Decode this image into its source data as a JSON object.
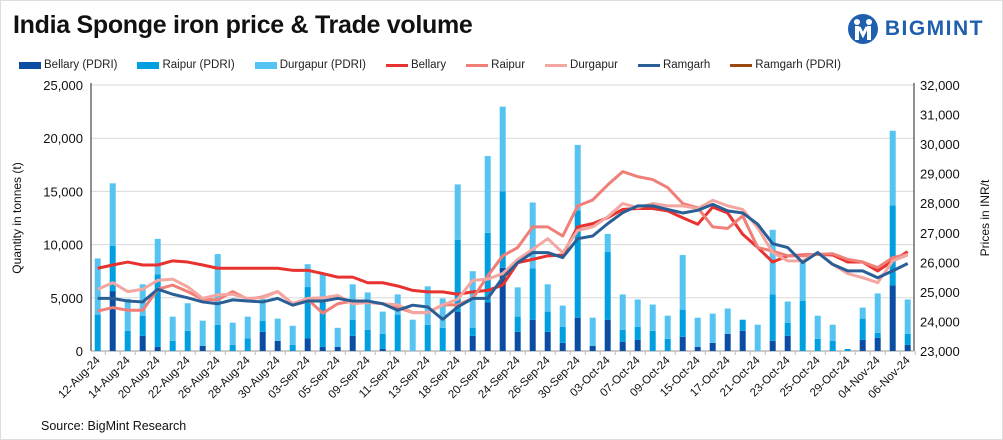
{
  "title": "India Sponge iron price & Trade volume",
  "logo": {
    "text": "BIGMINT",
    "color": "#1f5fae"
  },
  "source": "Source: BigMint Research",
  "chart_data": {
    "type": "bar+line",
    "title": "India Sponge iron price & Trade volume",
    "ylabel_left": "Quantity in tonnes (t)",
    "ylabel_right": "Prices in INR/t",
    "ylim_left": [
      0,
      25000
    ],
    "ylim_right": [
      23000,
      32000
    ],
    "yticks_left": [
      "0",
      "5,000",
      "10,000",
      "15,000",
      "20,000",
      "25,000"
    ],
    "yticks_right": [
      "23,000",
      "24,000",
      "25,000",
      "26,000",
      "27,000",
      "28,000",
      "29,000",
      "30,000",
      "31,000",
      "32,000"
    ],
    "grid": true,
    "legend_position": "top",
    "categories": [
      "12-Aug-24",
      "",
      "14-Aug-24",
      "",
      "20-Aug-24",
      "",
      "22-Aug-24",
      "",
      "26-Aug-24",
      "",
      "28-Aug-24",
      "",
      "30-Aug-24",
      "",
      "03-Sep-24",
      "",
      "05-Sep-24",
      "",
      "09-Sep-24",
      "",
      "11-Sep-24",
      "",
      "13-Sep-24",
      "",
      "18-Sep-24",
      "",
      "20-Sep-24",
      "",
      "24-Sep-24",
      "",
      "26-Sep-24",
      "",
      "30-Sep-24",
      "",
      "03-Oct-24",
      "",
      "07-Oct-24",
      "",
      "09-Oct-24",
      "",
      "15-Oct-24",
      "",
      "17-Oct-24",
      "",
      "21-Oct-24",
      "",
      "23-Oct-24",
      "",
      "25-Oct-24",
      "",
      "29-Oct-24",
      "",
      "04-Nov-24",
      "",
      "06-Nov-24"
    ],
    "bar_series": [
      {
        "name": "Bellary (PDRI)",
        "color": "#0a4da2",
        "values": [
          0,
          5630,
          0,
          1420,
          380,
          0,
          0,
          475,
          0,
          0,
          0,
          1800,
          950,
          0,
          1170,
          380,
          380,
          1420,
          0,
          190,
          0,
          0,
          0,
          0,
          3700,
          1420,
          4560,
          7820,
          1800,
          2940,
          1800,
          760,
          3130,
          475,
          2940,
          850,
          1040,
          0,
          0,
          1330,
          380,
          760,
          1610,
          1900,
          0,
          950,
          1420,
          0,
          0,
          0,
          0,
          1040,
          1230,
          6170,
          570
        ]
      },
      {
        "name": "Raipur (PDRI)",
        "color": "#00a0e0",
        "values": [
          3420,
          4270,
          1900,
          1900,
          6835,
          950,
          1900,
          0,
          2470,
          570,
          1170,
          1050,
          0,
          570,
          4840,
          4370,
          0,
          1520,
          2000,
          1420,
          3420,
          0,
          2470,
          2180,
          6740,
          760,
          6550,
          7180,
          1430,
          4840,
          1900,
          1520,
          10070,
          0,
          6360,
          1150,
          1240,
          1900,
          1140,
          2560,
          0,
          0,
          0,
          1040,
          0,
          4370,
          1240,
          4700,
          1140,
          950,
          190,
          2000,
          480,
          7500,
          1040
        ]
      },
      {
        "name": "Durgapur (PDRI)",
        "color": "#55c4f2",
        "values": [
          5280,
          5860,
          3000,
          2950,
          3325,
          2280,
          2590,
          2375,
          6640,
          2090,
          2060,
          2050,
          2090,
          1800,
          2150,
          2560,
          1800,
          3330,
          3500,
          2090,
          1900,
          2940,
          3610,
          2760,
          5220,
          5320,
          7210,
          7970,
          2750,
          6180,
          2570,
          1990,
          6170,
          2655,
          1710,
          3320,
          2560,
          2470,
          2180,
          5130,
          2750,
          2750,
          2380,
          0,
          2470,
          6070,
          1990,
          3590,
          2180,
          1520,
          0,
          1040,
          3700,
          7030,
          3230
        ]
      }
    ],
    "line_series": [
      {
        "name": "Bellary",
        "color": "#e8322f",
        "values": [
          25800,
          25910,
          26010,
          25910,
          25910,
          26050,
          26010,
          25910,
          25800,
          25800,
          25800,
          25800,
          25800,
          25730,
          25730,
          25620,
          25500,
          25500,
          25310,
          25310,
          25200,
          25050,
          25000,
          25000,
          24920,
          25000,
          25050,
          25230,
          25990,
          26100,
          26220,
          26250,
          27200,
          27310,
          27510,
          27790,
          27820,
          27820,
          27740,
          27510,
          27290,
          27870,
          27670,
          26950,
          26500,
          26010,
          26220,
          26250,
          26270,
          26250,
          26010,
          26010,
          25710,
          26050,
          26360
        ]
      },
      {
        "name": "Raipur",
        "color": "#f07f78",
        "values": [
          24350,
          24470,
          24380,
          24380,
          25090,
          25230,
          25010,
          24750,
          24730,
          25010,
          24750,
          24830,
          25010,
          24600,
          24750,
          24280,
          24600,
          24690,
          24640,
          24600,
          24470,
          24300,
          24300,
          24560,
          24560,
          24780,
          25540,
          26220,
          26500,
          27200,
          27200,
          26890,
          27910,
          28110,
          28620,
          29070,
          28900,
          28800,
          28530,
          27990,
          27850,
          27200,
          27150,
          27570,
          26500,
          26380,
          26220,
          26220,
          26270,
          26290,
          26100,
          26010,
          25820,
          26160,
          26270
        ]
      },
      {
        "name": "Durgapur",
        "color": "#f4a6a0",
        "values": [
          25090,
          25310,
          25010,
          25090,
          25390,
          25430,
          25170,
          24780,
          24900,
          24920,
          24780,
          24800,
          25010,
          24600,
          24780,
          24800,
          24880,
          24600,
          24640,
          24600,
          24560,
          24300,
          24300,
          24560,
          24750,
          25390,
          25430,
          25620,
          26100,
          26440,
          26800,
          26330,
          27080,
          27200,
          27540,
          27990,
          27850,
          27990,
          27910,
          27910,
          27820,
          28100,
          27910,
          27790,
          27170,
          26330,
          26050,
          26050,
          26330,
          25930,
          25620,
          25480,
          25310,
          26050,
          26250
        ]
      },
      {
        "name": "Ramgarh",
        "color": "#2a5f96",
        "values": [
          24780,
          24780,
          24690,
          24660,
          25090,
          24920,
          24800,
          24660,
          24600,
          24730,
          24690,
          24660,
          24780,
          24550,
          24690,
          24690,
          24780,
          24690,
          24690,
          24600,
          24380,
          24550,
          24490,
          24070,
          24490,
          24780,
          24780,
          25480,
          25990,
          26330,
          26330,
          26160,
          26800,
          26890,
          27310,
          27680,
          27910,
          27910,
          27790,
          27670,
          27760,
          27960,
          27740,
          27670,
          27290,
          26630,
          26500,
          25990,
          26330,
          25930,
          25710,
          25710,
          25480,
          25710,
          25960
        ]
      },
      {
        "name": "Ramgarh (PDRI)",
        "color": "#9a4a10",
        "values": []
      }
    ]
  }
}
